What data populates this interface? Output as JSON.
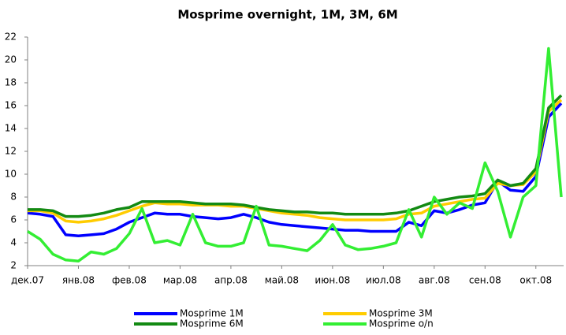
{
  "chart_data": {
    "type": "line",
    "title": "Mosprime overnight, 1M, 3M, 6M",
    "categories": [
      "дек.07",
      null,
      null,
      null,
      "янв.08",
      null,
      null,
      null,
      "фев.08",
      null,
      null,
      null,
      "мар.08",
      null,
      null,
      null,
      "апр.08",
      null,
      null,
      null,
      "май.08",
      null,
      null,
      null,
      "июн.08",
      null,
      null,
      null,
      "июл.08",
      null,
      null,
      null,
      "авг.08",
      null,
      null,
      null,
      "сен.08",
      null,
      null,
      null,
      "окт.08",
      null,
      null
    ],
    "series": [
      {
        "name": "Mosprime 1M",
        "color": "#0000ff",
        "values": [
          6.6,
          6.5,
          6.3,
          4.7,
          4.6,
          4.7,
          4.8,
          5.2,
          5.8,
          6.2,
          6.6,
          6.5,
          6.5,
          6.3,
          6.2,
          6.1,
          6.2,
          6.5,
          6.2,
          5.8,
          5.6,
          5.5,
          5.4,
          5.3,
          5.2,
          5.1,
          5.1,
          5.0,
          5.0,
          5.0,
          5.8,
          5.5,
          6.8,
          6.6,
          6.9,
          7.3,
          7.5,
          9.4,
          8.6,
          8.5,
          9.8,
          15.0,
          16.2
        ]
      },
      {
        "name": "Mosprime 3M",
        "color": "#ffcc00",
        "values": [
          6.8,
          6.8,
          6.6,
          5.9,
          5.8,
          5.9,
          6.1,
          6.4,
          6.8,
          7.2,
          7.5,
          7.4,
          7.4,
          7.3,
          7.3,
          7.3,
          7.2,
          7.2,
          7.0,
          6.8,
          6.6,
          6.5,
          6.4,
          6.2,
          6.1,
          6.0,
          6.0,
          6.0,
          6.0,
          6.1,
          6.5,
          6.6,
          7.2,
          7.4,
          7.6,
          7.8,
          7.9,
          9.2,
          9.0,
          9.1,
          10.2,
          15.5,
          16.5
        ]
      },
      {
        "name": "Mosprime 6M",
        "color": "#138a13",
        "values": [
          6.9,
          6.9,
          6.8,
          6.3,
          6.3,
          6.4,
          6.6,
          6.9,
          7.1,
          7.6,
          7.6,
          7.6,
          7.6,
          7.5,
          7.4,
          7.4,
          7.4,
          7.3,
          7.1,
          6.9,
          6.8,
          6.7,
          6.7,
          6.6,
          6.6,
          6.5,
          6.5,
          6.5,
          6.5,
          6.6,
          6.8,
          7.2,
          7.6,
          7.8,
          8.0,
          8.1,
          8.3,
          9.5,
          9.0,
          9.2,
          10.5,
          15.8,
          16.9
        ]
      },
      {
        "name": "Mosprime o/n",
        "color": "#33ee33",
        "values": [
          5.0,
          4.3,
          3.0,
          2.5,
          2.4,
          3.2,
          3.0,
          3.5,
          4.8,
          7.0,
          4.0,
          4.2,
          3.8,
          6.5,
          4.0,
          3.7,
          3.7,
          4.0,
          7.2,
          3.8,
          3.7,
          3.5,
          3.3,
          4.2,
          5.6,
          3.8,
          3.4,
          3.5,
          3.7,
          4.0,
          6.9,
          4.5,
          8.0,
          6.5,
          7.5,
          7.0,
          11.0,
          8.5,
          4.5,
          8.0,
          9.0,
          21.0,
          8.0
        ]
      }
    ],
    "ylim": [
      2,
      22
    ],
    "yticks": [
      2,
      4,
      6,
      8,
      10,
      12,
      14,
      16,
      18,
      20,
      22
    ],
    "grid": false,
    "legend": "bottom"
  }
}
